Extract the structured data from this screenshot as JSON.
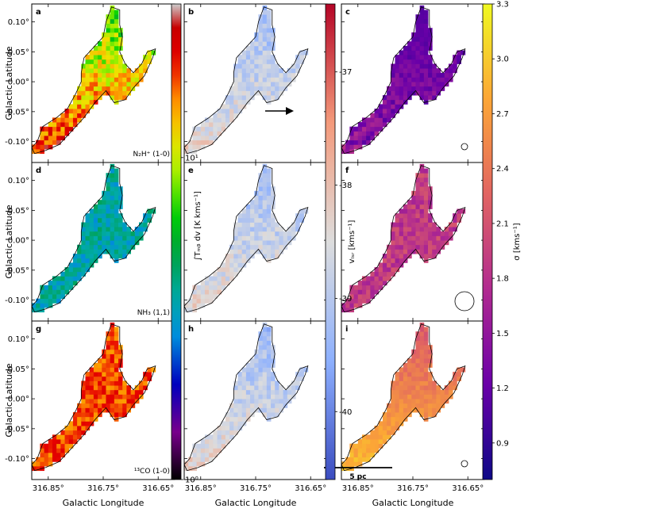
{
  "chart_data": {
    "type": "heatmap",
    "panel_labels": [
      "a",
      "b",
      "c",
      "d",
      "e",
      "f",
      "g",
      "h",
      "i"
    ],
    "row_tracers": [
      "N$_2$H$^+$ (1-0)",
      "NH$_3$ (1,1)",
      "$^{13}$CO (1-0)"
    ],
    "row_tracer_text": [
      "N₂H⁺ (1-0)",
      "NH₃ (1,1)",
      "¹³CO (1-0)"
    ],
    "xlabel": "Galactic Longitude",
    "ylabel": "Galactic Latitude",
    "x_ticks": [
      "316.85°",
      "316.75°",
      "316.65°"
    ],
    "x_tick_values": [
      316.85,
      316.75,
      316.65
    ],
    "y_ticks": [
      "0.10°",
      "0.05°",
      "0.00°",
      "-0.05°",
      "-0.10°"
    ],
    "y_tick_values": [
      0.1,
      0.05,
      0.0,
      -0.05,
      -0.1
    ],
    "xlim": [
      316.88,
      316.62
    ],
    "ylim": [
      -0.135,
      0.13
    ],
    "scale_bar_label": "5 pc",
    "colorbars": [
      {
        "id": "integrated-intensity",
        "label": "∫Tₘᵦ dv [K kms⁻¹]",
        "scale": "log",
        "range": [
          1,
          30
        ],
        "tick_labels": [
          "10⁰",
          "10¹"
        ],
        "tick_values": [
          1,
          10
        ],
        "colormap": "nipy_spectral"
      },
      {
        "id": "velocity",
        "label": "vₗₛᵣ [kms⁻¹]",
        "scale": "linear",
        "range": [
          -40.6,
          -36.4
        ],
        "tick_labels": [
          "-37",
          "-38",
          "-39",
          "-40"
        ],
        "tick_values": [
          -37,
          -38,
          -39,
          -40
        ],
        "colormap": "coolwarm"
      },
      {
        "id": "dispersion",
        "label": "σ [kms⁻¹]",
        "scale": "linear",
        "range": [
          0.7,
          3.3
        ],
        "tick_labels": [
          "0.9",
          "1.2",
          "1.5",
          "1.8",
          "2.1",
          "2.4",
          "2.7",
          "3.0",
          "3.3"
        ],
        "tick_values": [
          0.9,
          1.2,
          1.5,
          1.8,
          2.1,
          2.4,
          2.7,
          3.0,
          3.3
        ],
        "colormap": "plasma"
      }
    ],
    "colors": {
      "arrow": "#000000",
      "contour": "#000000",
      "markers": "#000000"
    }
  }
}
